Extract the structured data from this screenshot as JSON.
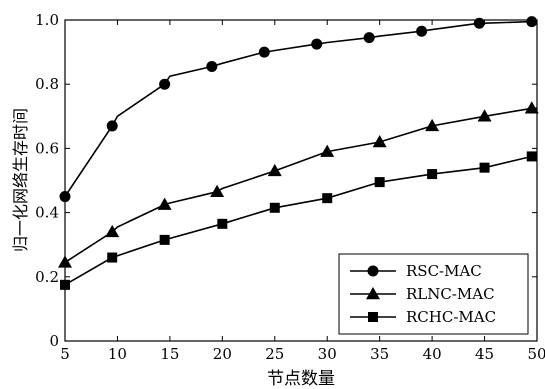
{
  "chart_data": {
    "type": "line",
    "title": "",
    "xlabel": "节点数量",
    "ylabel": "归一化网络生存时间",
    "xlim": [
      5,
      50
    ],
    "ylim": [
      0,
      1.0
    ],
    "xticks": [
      5,
      10,
      15,
      20,
      25,
      30,
      35,
      40,
      45,
      50
    ],
    "yticks": [
      0,
      0.2,
      0.4,
      0.6,
      0.8,
      1.0
    ],
    "xtick_labels": [
      "5",
      "10",
      "15",
      "20",
      "25",
      "30",
      "35",
      "40",
      "45",
      "50"
    ],
    "ytick_labels": [
      "0",
      "0.2",
      "0.4",
      "0.6",
      "0.8",
      "1.0"
    ],
    "grid": false,
    "legend_position": "bottom-right",
    "series": [
      {
        "name": "RSC-MAC",
        "marker": "circle",
        "x": [
          5,
          9.5,
          14.5,
          19,
          24,
          29,
          34,
          39,
          44.5,
          49.5
        ],
        "y": [
          0.45,
          0.67,
          0.8,
          0.855,
          0.9,
          0.925,
          0.945,
          0.965,
          0.99,
          0.995
        ],
        "line_x": [
          5,
          9.5,
          10,
          14.5,
          15,
          19,
          20,
          24,
          25,
          29,
          30,
          34,
          35,
          39,
          40,
          44.5,
          45,
          49.5,
          50
        ],
        "line_y": [
          0.45,
          0.67,
          0.7,
          0.8,
          0.825,
          0.855,
          0.865,
          0.9,
          0.905,
          0.925,
          0.93,
          0.945,
          0.95,
          0.965,
          0.97,
          0.99,
          0.99,
          0.995,
          0.995
        ]
      },
      {
        "name": "RLNC-MAC",
        "marker": "triangle",
        "x": [
          5,
          9.5,
          14.5,
          19.5,
          25,
          30,
          35,
          40,
          45,
          49.5
        ],
        "y": [
          0.245,
          0.34,
          0.425,
          0.465,
          0.53,
          0.59,
          0.62,
          0.67,
          0.7,
          0.725
        ],
        "line_x": [
          5,
          9.5,
          10,
          14.5,
          15,
          19.5,
          20,
          25,
          30,
          35,
          40,
          45,
          49.5,
          50
        ],
        "line_y": [
          0.245,
          0.34,
          0.355,
          0.425,
          0.43,
          0.465,
          0.475,
          0.53,
          0.59,
          0.62,
          0.67,
          0.7,
          0.725,
          0.725
        ]
      },
      {
        "name": "RCHC-MAC",
        "marker": "square",
        "x": [
          5,
          9.5,
          14.5,
          20,
          25,
          30,
          35,
          40,
          45,
          49.5
        ],
        "y": [
          0.175,
          0.26,
          0.315,
          0.365,
          0.415,
          0.445,
          0.495,
          0.52,
          0.54,
          0.575
        ],
        "line_x": [
          5,
          9.5,
          14.5,
          20,
          25,
          30,
          35,
          40,
          45,
          49.5,
          50
        ],
        "line_y": [
          0.175,
          0.26,
          0.315,
          0.365,
          0.415,
          0.445,
          0.495,
          0.52,
          0.54,
          0.575,
          0.575
        ]
      }
    ]
  }
}
